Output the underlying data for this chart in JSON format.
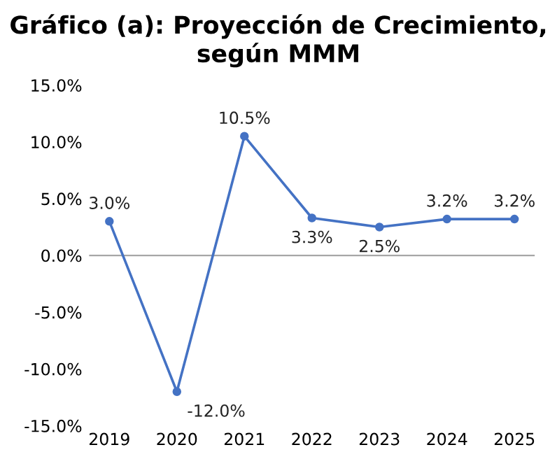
{
  "chart_data": {
    "type": "line",
    "title": "Gráfico (a): Proyección de Crecimiento, según MMM",
    "categories": [
      "2019",
      "2020",
      "2021",
      "2022",
      "2023",
      "2024",
      "2025"
    ],
    "values": [
      3.0,
      -12.0,
      10.5,
      3.3,
      2.5,
      3.2,
      3.2
    ],
    "value_labels": [
      "3.0%",
      "-12.0%",
      "10.5%",
      "3.3%",
      "2.5%",
      "3.2%",
      "3.2%"
    ],
    "color": "#4472c4",
    "marker": "circle",
    "line_style": "solid",
    "ylim": [
      -15,
      15
    ],
    "yticks": [
      {
        "value": -15,
        "label": "-15.0%"
      },
      {
        "value": -10,
        "label": "-10.0%"
      },
      {
        "value": -5,
        "label": "-5.0%"
      },
      {
        "value": 0,
        "label": "0.0%"
      },
      {
        "value": 5,
        "label": "5.0%"
      },
      {
        "value": 10,
        "label": "10.0%"
      },
      {
        "value": 15,
        "label": "15.0%"
      }
    ],
    "ref_lines": [
      {
        "axis": "y",
        "value": 0,
        "color": "#a6a6a6"
      }
    ],
    "grid": false,
    "legend": false
  }
}
